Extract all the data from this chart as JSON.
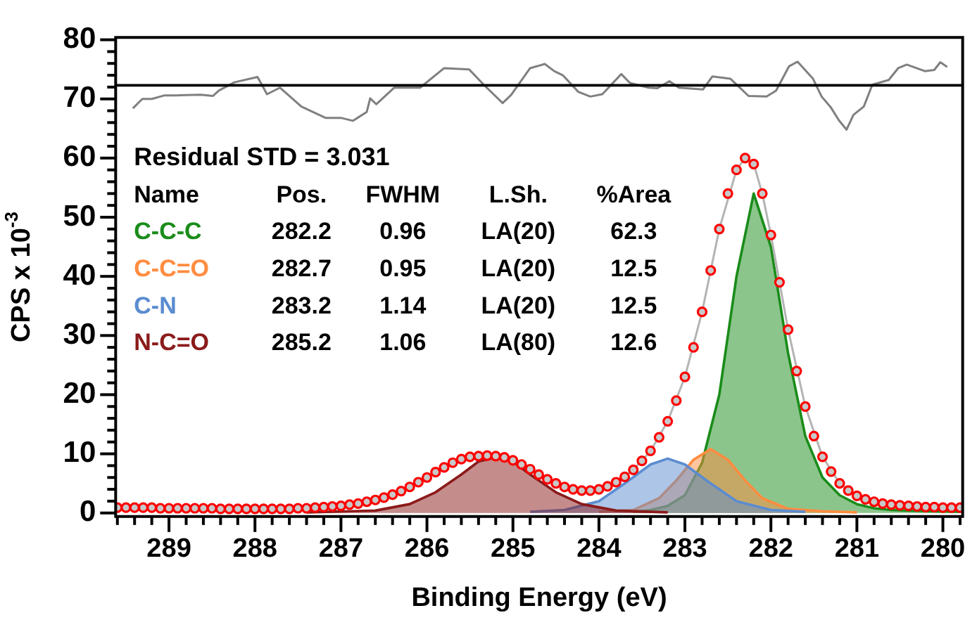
{
  "chart_data": {
    "type": "area",
    "xlabel": "Binding Energy (eV)",
    "ylabel": "CPS x 10$^{-3}$",
    "xlim": [
      289.62,
      279.77
    ],
    "ylim": [
      -0.6,
      80.4
    ],
    "xticks": [
      289,
      288,
      287,
      286,
      285,
      284,
      283,
      282,
      281,
      280,
      {
        "value": 289.6,
        "label": null
      },
      {
        "value": 289.4,
        "label": null
      },
      {
        "value": 289.2,
        "label": null
      },
      {
        "value": 288.8,
        "label": null
      },
      {
        "value": 288.6,
        "label": null
      },
      {
        "value": 288.4,
        "label": null
      },
      {
        "value": 288.2,
        "label": null
      },
      {
        "value": 287.8,
        "label": null
      },
      {
        "value": 287.6,
        "label": null
      },
      {
        "value": 287.4,
        "label": null
      },
      {
        "value": 287.2,
        "label": null
      },
      {
        "value": 286.8,
        "label": null
      },
      {
        "value": 286.6,
        "label": null
      },
      {
        "value": 286.4,
        "label": null
      },
      {
        "value": 286.2,
        "label": null
      },
      {
        "value": 285.8,
        "label": null
      },
      {
        "value": 285.6,
        "label": null
      },
      {
        "value": 285.4,
        "label": null
      },
      {
        "value": 285.2,
        "label": null
      },
      {
        "value": 284.8,
        "label": null
      },
      {
        "value": 284.6,
        "label": null
      },
      {
        "value": 284.4,
        "label": null
      },
      {
        "value": 284.2,
        "label": null
      },
      {
        "value": 283.8,
        "label": null
      },
      {
        "value": 283.6,
        "label": null
      },
      {
        "value": 283.4,
        "label": null
      },
      {
        "value": 283.2,
        "label": null
      },
      {
        "value": 282.8,
        "label": null
      },
      {
        "value": 282.6,
        "label": null
      },
      {
        "value": 282.4,
        "label": null
      },
      {
        "value": 282.2,
        "label": null
      },
      {
        "value": 281.8,
        "label": null
      },
      {
        "value": 281.6,
        "label": null
      },
      {
        "value": 281.4,
        "label": null
      },
      {
        "value": 281.2,
        "label": null
      },
      {
        "value": 280.8,
        "label": null
      },
      {
        "value": 280.6,
        "label": null
      },
      {
        "value": 280.4,
        "label": null
      },
      {
        "value": 280.2,
        "label": null
      },
      {
        "value": 279.8,
        "label": null
      }
    ],
    "yticks": [
      0,
      10,
      20,
      30,
      40,
      50,
      60,
      70,
      80,
      {
        "value": 2,
        "label": null
      },
      {
        "value": 4,
        "label": null
      },
      {
        "value": 6,
        "label": null
      },
      {
        "value": 8,
        "label": null
      },
      {
        "value": 12,
        "label": null
      },
      {
        "value": 14,
        "label": null
      },
      {
        "value": 16,
        "label": null
      },
      {
        "value": 18,
        "label": null
      },
      {
        "value": 22,
        "label": null
      },
      {
        "value": 24,
        "label": null
      },
      {
        "value": 26,
        "label": null
      },
      {
        "value": 28,
        "label": null
      },
      {
        "value": 32,
        "label": null
      },
      {
        "value": 34,
        "label": null
      },
      {
        "value": 36,
        "label": null
      },
      {
        "value": 38,
        "label": null
      },
      {
        "value": 42,
        "label": null
      },
      {
        "value": 44,
        "label": null
      },
      {
        "value": 46,
        "label": null
      },
      {
        "value": 48,
        "label": null
      },
      {
        "value": 52,
        "label": null
      },
      {
        "value": 54,
        "label": null
      },
      {
        "value": 56,
        "label": null
      },
      {
        "value": 58,
        "label": null
      },
      {
        "value": 62,
        "label": null
      },
      {
        "value": 64,
        "label": null
      },
      {
        "value": 66,
        "label": null
      },
      {
        "value": 68,
        "label": null
      },
      {
        "value": 72,
        "label": null
      },
      {
        "value": 74,
        "label": null
      },
      {
        "value": 76,
        "label": null
      },
      {
        "value": 78,
        "label": null
      }
    ],
    "grid": false,
    "ref_lines": [
      {
        "axis": "y",
        "value": 72.3,
        "color": "#000000"
      }
    ],
    "annotations": [
      "Residual STD = 3.031",
      "Name",
      "Pos.",
      "FWHM",
      "L.Sh.",
      "%Area",
      "282.2",
      "0.96",
      "LA(20)",
      "62.3",
      "282.7",
      "0.95",
      "LA(20)",
      "12.5",
      "283.2",
      "1.14",
      "LA(20)",
      "12.5",
      "285.2",
      "1.06",
      "LA(80)",
      "12.6"
    ],
    "series": [
      {
        "name": "C-C-C",
        "color": "#1a8c1a",
        "x": [
          283.6,
          283.4,
          283.2,
          283.0,
          282.8,
          282.6,
          282.4,
          282.2,
          282.0,
          281.8,
          281.6,
          281.4,
          281.2,
          281.0,
          280.8,
          280.6,
          280.2,
          279.8
        ],
        "values": [
          0.2,
          0.5,
          1.2,
          3,
          8.5,
          20,
          40,
          54,
          45,
          27,
          13,
          6,
          3,
          1.5,
          0.8,
          0.5,
          0.3,
          0.2
        ]
      },
      {
        "name": "C-C=O",
        "color": "#ff8c40",
        "x": [
          284.0,
          283.6,
          283.3,
          283.1,
          282.9,
          282.7,
          282.5,
          282.3,
          282.1,
          281.8,
          281.4,
          281.0
        ],
        "values": [
          0.2,
          0.5,
          2.5,
          5.5,
          9,
          10.8,
          9,
          5.5,
          2.5,
          0.7,
          0.3,
          0.1
        ]
      },
      {
        "name": "C-N",
        "color": "#5b8cd0",
        "x": [
          284.8,
          284.4,
          284.0,
          283.7,
          283.4,
          283.2,
          283.0,
          282.7,
          282.4,
          282.0,
          281.6
        ],
        "values": [
          0.2,
          0.5,
          2,
          5,
          8.2,
          9.2,
          8.2,
          5,
          2,
          0.5,
          0.2
        ]
      },
      {
        "name": "N-C=O",
        "color": "#8b1a1a",
        "x": [
          287.4,
          286.6,
          286.2,
          285.9,
          285.6,
          285.4,
          285.2,
          285.0,
          284.8,
          284.5,
          284.2,
          283.8,
          283.2
        ],
        "values": [
          0.1,
          0.4,
          1.5,
          3.5,
          6.5,
          8.7,
          9.4,
          8.7,
          6.5,
          3.5,
          1.5,
          0.4,
          0.1
        ]
      },
      {
        "type": "line",
        "color": "#b4b4b4",
        "x": [
          289.6,
          289.0,
          288.4,
          287.8,
          287.4,
          287.0,
          286.6,
          286.2,
          286.0,
          285.8,
          285.6,
          285.4,
          285.2,
          285.0,
          284.8,
          284.6,
          284.4,
          284.2,
          284.0,
          283.8,
          283.6,
          283.4,
          283.2,
          283.0,
          282.8,
          282.6,
          282.4,
          282.3,
          282.2,
          282.1,
          282.0,
          281.8,
          281.6,
          281.4,
          281.2,
          281.0,
          280.8,
          280.6,
          280.2,
          279.8
        ],
        "values": [
          0.9,
          0.8,
          0.8,
          0.7,
          0.8,
          1.2,
          2.2,
          4.4,
          6.0,
          7.7,
          9.1,
          9.3,
          9.6,
          8.9,
          7.4,
          5.7,
          4.4,
          3.8,
          4.0,
          5.2,
          7.3,
          10.5,
          15.5,
          23,
          34,
          48,
          58,
          60,
          59,
          54,
          47,
          31,
          18,
          9.5,
          5,
          2.9,
          1.9,
          1.4,
          1.0,
          0.9
        ]
      },
      {
        "type": "line",
        "color": "#808080",
        "x": [
          289.42,
          289.31,
          289.2,
          289.05,
          288.91,
          288.63,
          288.49,
          288.42,
          288.24,
          287.97,
          287.86,
          287.71,
          287.46,
          287.18,
          287.0,
          286.86,
          286.7,
          286.66,
          286.59,
          286.38,
          286.08,
          285.8,
          285.51,
          285.34,
          285.12,
          285.02,
          284.8,
          284.63,
          284.52,
          284.42,
          284.24,
          284.1,
          283.96,
          283.74,
          283.64,
          283.42,
          283.32,
          283.18,
          283.07,
          282.79,
          282.68,
          282.47,
          282.26,
          282.05,
          281.94,
          281.79,
          281.69,
          281.51,
          281.41,
          281.3,
          281.21,
          281.12,
          281.04,
          280.92,
          280.82,
          280.63,
          280.52,
          280.42,
          280.21,
          280.1,
          280.03,
          279.95
        ],
        "values": [
          68.4,
          70.0,
          70.0,
          70.6,
          70.6,
          70.7,
          70.5,
          71.4,
          72.8,
          73.7,
          70.8,
          71.9,
          68.7,
          66.8,
          66.8,
          66.3,
          67.8,
          70.1,
          69.1,
          71.9,
          71.9,
          75.2,
          75.0,
          72.4,
          69.3,
          70.7,
          75.2,
          75.9,
          74.7,
          74.0,
          71.2,
          70.4,
          70.8,
          74.2,
          72.7,
          71.9,
          71.8,
          73.0,
          71.9,
          71.6,
          73.8,
          73.4,
          70.5,
          70.4,
          71.4,
          75.5,
          76.3,
          73.4,
          70.4,
          68.5,
          66.4,
          64.8,
          67.3,
          68.7,
          72.4,
          73.2,
          75.2,
          75.8,
          74.7,
          74.9,
          76.2,
          75.4
        ]
      },
      {
        "type": "scatter",
        "marker": "circle",
        "color": "#ff0000",
        "x": [
          289.6,
          289.5,
          289.4,
          289.3,
          289.2,
          289.1,
          289.0,
          288.9,
          288.8,
          288.7,
          288.6,
          288.5,
          288.4,
          288.3,
          288.2,
          288.1,
          288.0,
          287.9,
          287.8,
          287.7,
          287.6,
          287.5,
          287.4,
          287.3,
          287.2,
          287.1,
          287.0,
          286.9,
          286.8,
          286.7,
          286.6,
          286.5,
          286.4,
          286.3,
          286.2,
          286.1,
          286.0,
          285.9,
          285.8,
          285.7,
          285.6,
          285.5,
          285.4,
          285.3,
          285.2,
          285.1,
          285.0,
          284.9,
          284.8,
          284.7,
          284.6,
          284.5,
          284.4,
          284.3,
          284.2,
          284.1,
          284.0,
          283.9,
          283.8,
          283.7,
          283.6,
          283.5,
          283.4,
          283.3,
          283.2,
          283.1,
          283.0,
          282.9,
          282.8,
          282.7,
          282.6,
          282.5,
          282.4,
          282.3,
          282.2,
          282.1,
          282.0,
          281.9,
          281.8,
          281.7,
          281.6,
          281.5,
          281.4,
          281.3,
          281.2,
          281.1,
          281.0,
          280.9,
          280.8,
          280.7,
          280.6,
          280.5,
          280.4,
          280.3,
          280.2,
          280.1,
          280.0,
          279.9,
          279.8
        ],
        "values": [
          0.9,
          0.9,
          0.9,
          0.9,
          0.9,
          0.8,
          0.8,
          0.8,
          0.8,
          0.8,
          0.8,
          0.8,
          0.7,
          0.7,
          0.7,
          0.7,
          0.7,
          0.7,
          0.7,
          0.7,
          0.7,
          0.8,
          0.8,
          0.9,
          1.0,
          1.1,
          1.2,
          1.4,
          1.6,
          1.9,
          2.2,
          2.6,
          3.1,
          3.7,
          4.4,
          5.2,
          6.0,
          6.9,
          7.7,
          8.5,
          9.1,
          9.5,
          9.6,
          9.7,
          9.6,
          9.4,
          8.9,
          8.2,
          7.4,
          6.5,
          5.7,
          5.0,
          4.4,
          4.0,
          3.8,
          3.8,
          4.0,
          4.5,
          5.2,
          6.1,
          7.3,
          8.8,
          10.5,
          12.8,
          15.5,
          19,
          23,
          28,
          34,
          41,
          48,
          54,
          58,
          60,
          59,
          54,
          47,
          39,
          31,
          24,
          18,
          13,
          9.5,
          7,
          5,
          3.8,
          2.9,
          2.3,
          1.9,
          1.6,
          1.4,
          1.3,
          1.2,
          1.1,
          1.0,
          1.0,
          0.9,
          0.9,
          0.9
        ]
      }
    ]
  }
}
